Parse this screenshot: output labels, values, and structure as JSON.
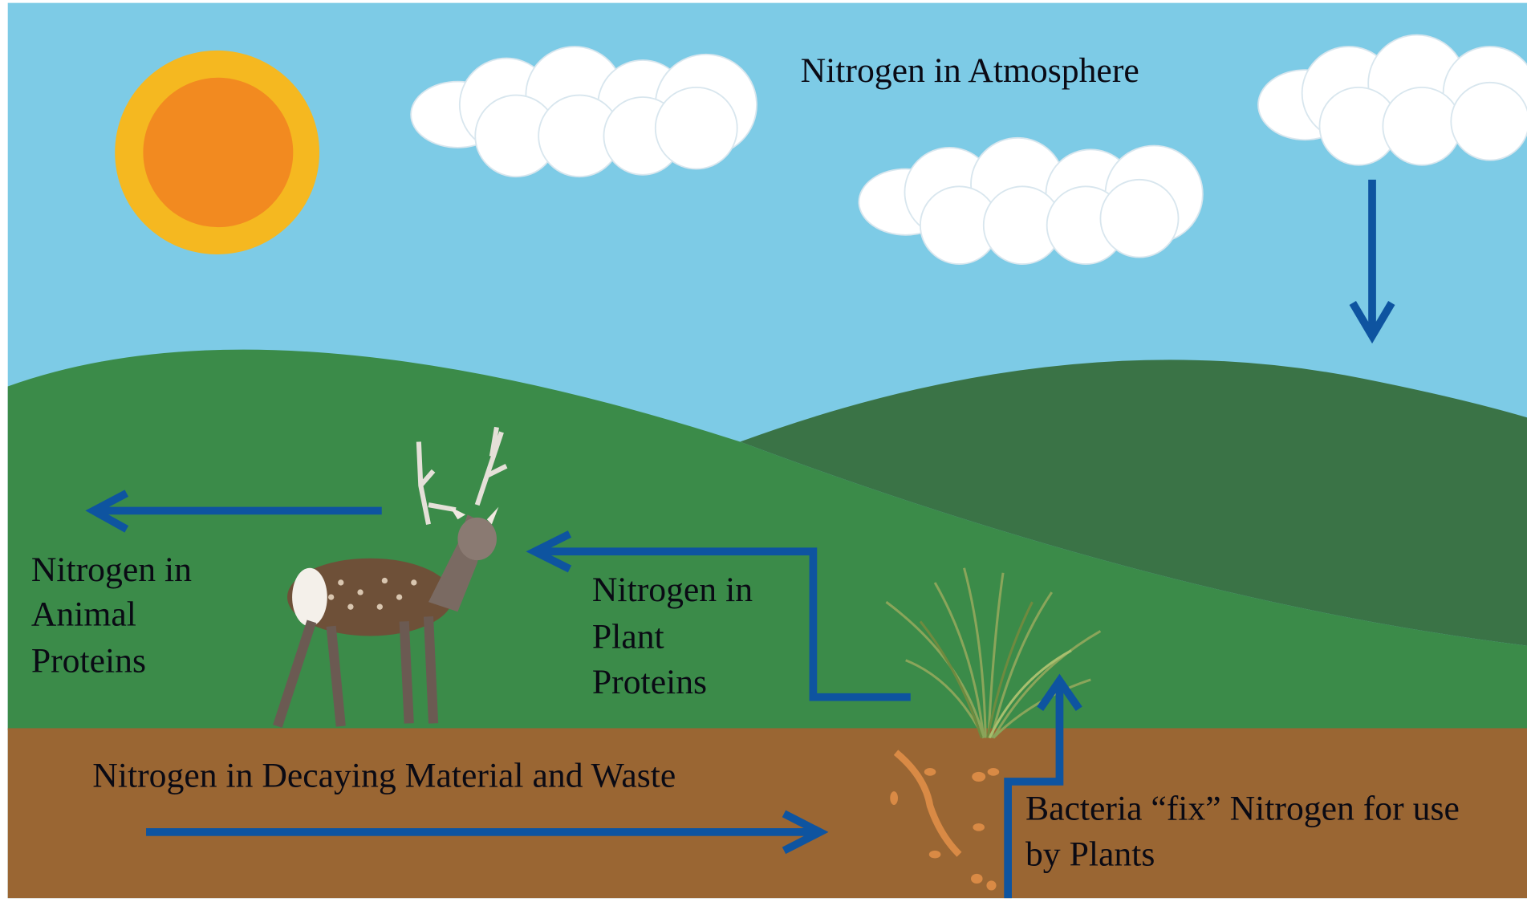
{
  "title": "Nitrogen in Atmosphere",
  "labels": {
    "animal": [
      "Nitrogen in",
      "Animal",
      "Proteins"
    ],
    "plant": [
      "Nitrogen in",
      "Plant",
      "Proteins"
    ],
    "decaying": "Nitrogen in Decaying Material and Waste",
    "bacteria": [
      "Bacteria “fix” Nitrogen for use",
      "by Plants"
    ]
  }
}
